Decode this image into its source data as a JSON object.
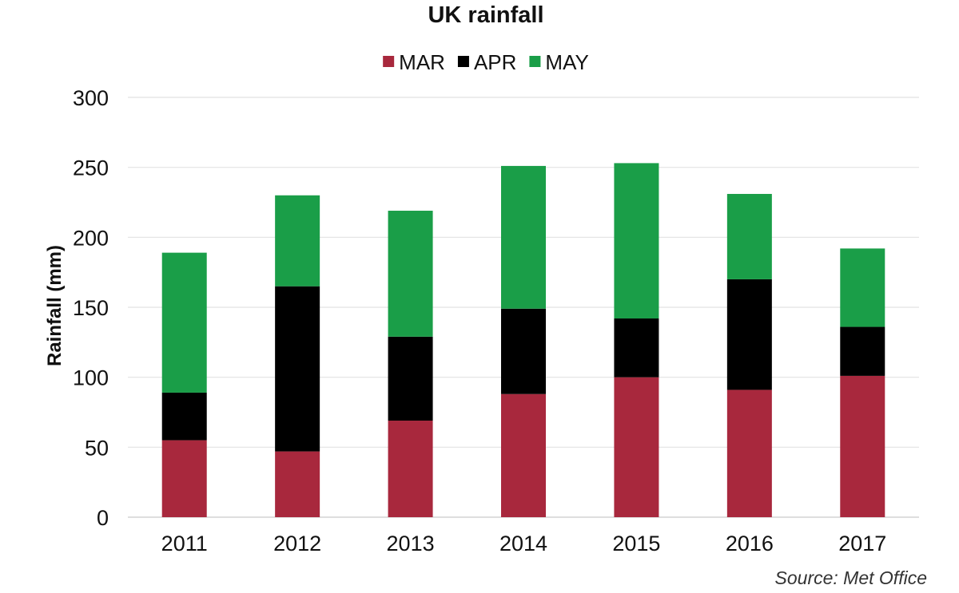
{
  "chart_data": {
    "type": "bar",
    "stacked": true,
    "title": "UK rainfall",
    "xlabel": "",
    "ylabel": "Rainfall (mm)",
    "ylim": [
      0,
      300
    ],
    "yticks": [
      0,
      50,
      100,
      150,
      200,
      250,
      300
    ],
    "grid": true,
    "legend_position": "top-center",
    "categories": [
      "2011",
      "2012",
      "2013",
      "2014",
      "2015",
      "2016",
      "2017"
    ],
    "series": [
      {
        "name": "MAR",
        "color": "#a8283d",
        "values": [
          55,
          47,
          69,
          88,
          100,
          91,
          101
        ]
      },
      {
        "name": "APR",
        "color": "#000000",
        "values": [
          34,
          118,
          60,
          61,
          42,
          79,
          35
        ]
      },
      {
        "name": "MAY",
        "color": "#1a9e48",
        "values": [
          100,
          65,
          90,
          102,
          111,
          61,
          56
        ]
      }
    ],
    "source": "Source: Met Office"
  }
}
